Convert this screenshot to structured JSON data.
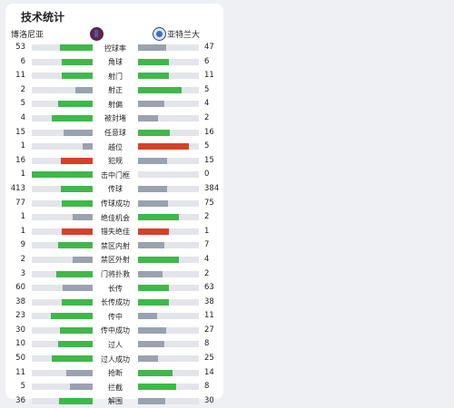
{
  "title": "技术统计",
  "teams": {
    "home": "博洛尼亚",
    "away": "亚特兰大"
  },
  "colors": {
    "green": "#3fb84a",
    "gray": "#9aa2b0",
    "red": "#d6402a"
  },
  "stats": [
    {
      "label": "控球率",
      "home": "53",
      "away": "47",
      "hp": 0.53,
      "ap": 0.47,
      "hc": "green",
      "ac": "gray"
    },
    {
      "label": "角球",
      "home": "6",
      "away": "6",
      "hp": 0.5,
      "ap": 0.5,
      "hc": "green",
      "ac": "green"
    },
    {
      "label": "射门",
      "home": "11",
      "away": "11",
      "hp": 0.5,
      "ap": 0.5,
      "hc": "green",
      "ac": "green"
    },
    {
      "label": "射正",
      "home": "2",
      "away": "5",
      "hp": 0.29,
      "ap": 0.71,
      "hc": "gray",
      "ac": "green"
    },
    {
      "label": "射偏",
      "home": "5",
      "away": "4",
      "hp": 0.56,
      "ap": 0.44,
      "hc": "green",
      "ac": "gray"
    },
    {
      "label": "被封堵",
      "home": "4",
      "away": "2",
      "hp": 0.67,
      "ap": 0.33,
      "hc": "green",
      "ac": "gray"
    },
    {
      "label": "任意球",
      "home": "15",
      "away": "16",
      "hp": 0.48,
      "ap": 0.52,
      "hc": "gray",
      "ac": "green"
    },
    {
      "label": "越位",
      "home": "1",
      "away": "5",
      "hp": 0.17,
      "ap": 0.83,
      "hc": "gray",
      "ac": "red"
    },
    {
      "label": "犯规",
      "home": "16",
      "away": "15",
      "hp": 0.52,
      "ap": 0.48,
      "hc": "red",
      "ac": "gray"
    },
    {
      "label": "击中门框",
      "home": "1",
      "away": "0",
      "hp": 1.0,
      "ap": 0.0,
      "hc": "green",
      "ac": "gray"
    },
    {
      "label": "传球",
      "home": "413",
      "away": "384",
      "hp": 0.52,
      "ap": 0.48,
      "hc": "green",
      "ac": "gray"
    },
    {
      "label": "传球成功",
      "home": "77",
      "away": "75",
      "hp": 0.51,
      "ap": 0.49,
      "hc": "green",
      "ac": "gray"
    },
    {
      "label": "绝佳机会",
      "home": "1",
      "away": "2",
      "hp": 0.33,
      "ap": 0.67,
      "hc": "gray",
      "ac": "green"
    },
    {
      "label": "错失绝佳",
      "home": "1",
      "away": "1",
      "hp": 0.5,
      "ap": 0.5,
      "hc": "red",
      "ac": "red"
    },
    {
      "label": "禁区内射",
      "home": "9",
      "away": "7",
      "hp": 0.56,
      "ap": 0.44,
      "hc": "green",
      "ac": "gray"
    },
    {
      "label": "禁区外射",
      "home": "2",
      "away": "4",
      "hp": 0.33,
      "ap": 0.67,
      "hc": "gray",
      "ac": "green"
    },
    {
      "label": "门将扑救",
      "home": "3",
      "away": "2",
      "hp": 0.6,
      "ap": 0.4,
      "hc": "green",
      "ac": "gray"
    },
    {
      "label": "长传",
      "home": "60",
      "away": "63",
      "hp": 0.49,
      "ap": 0.51,
      "hc": "gray",
      "ac": "green"
    },
    {
      "label": "长传成功",
      "home": "38",
      "away": "38",
      "hp": 0.5,
      "ap": 0.5,
      "hc": "green",
      "ac": "green"
    },
    {
      "label": "传中",
      "home": "23",
      "away": "11",
      "hp": 0.68,
      "ap": 0.32,
      "hc": "green",
      "ac": "gray"
    },
    {
      "label": "传中成功",
      "home": "30",
      "away": "27",
      "hp": 0.53,
      "ap": 0.47,
      "hc": "green",
      "ac": "gray"
    },
    {
      "label": "过人",
      "home": "10",
      "away": "8",
      "hp": 0.56,
      "ap": 0.44,
      "hc": "green",
      "ac": "gray"
    },
    {
      "label": "过人成功",
      "home": "50",
      "away": "25",
      "hp": 0.67,
      "ap": 0.33,
      "hc": "green",
      "ac": "gray"
    },
    {
      "label": "抢断",
      "home": "11",
      "away": "14",
      "hp": 0.44,
      "ap": 0.56,
      "hc": "gray",
      "ac": "green"
    },
    {
      "label": "拦截",
      "home": "5",
      "away": "8",
      "hp": 0.38,
      "ap": 0.62,
      "hc": "gray",
      "ac": "green"
    },
    {
      "label": "解围",
      "home": "36",
      "away": "30",
      "hp": 0.55,
      "ap": 0.45,
      "hc": "green",
      "ac": "gray"
    }
  ]
}
